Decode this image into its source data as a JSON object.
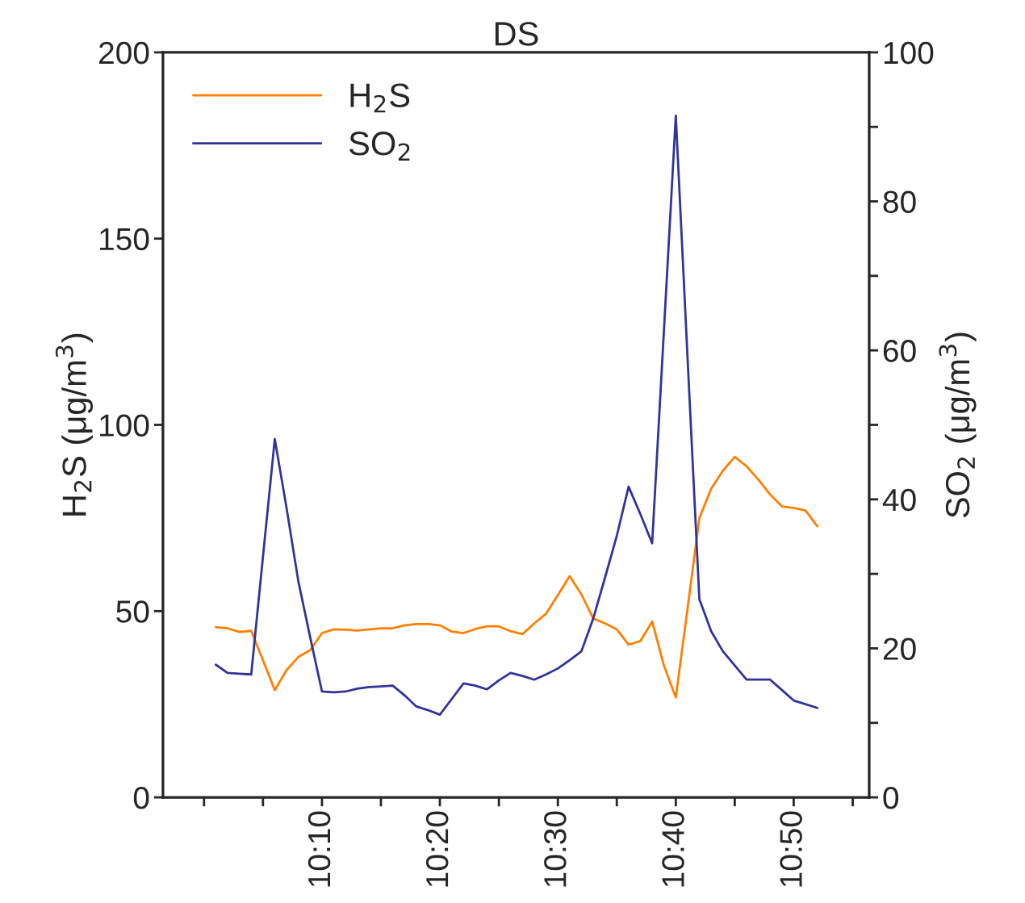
{
  "chart_data": {
    "type": "line",
    "title": "DS",
    "ylabel": "H$_{2}$S (μg/m$^{3}$)",
    "y2label": "SO$_{2}$ (μg/m$^{3}$)",
    "x": [
      10.0167,
      10.0333,
      10.05,
      10.0667,
      10.0833,
      10.1,
      10.1167,
      10.1333,
      10.15,
      10.1667,
      10.1833,
      10.2,
      10.2167,
      10.2333,
      10.25,
      10.2667,
      10.2833,
      10.3,
      10.3167,
      10.3333,
      10.35,
      10.3667,
      10.3833,
      10.4,
      10.4167,
      10.4333,
      10.45,
      10.4667,
      10.4833,
      10.5,
      10.5167,
      10.5333,
      10.55,
      10.5667,
      10.5833,
      10.6,
      10.6167,
      10.6333,
      10.65,
      10.6667,
      10.6833,
      10.7,
      10.7167,
      10.7333,
      10.75,
      10.7667,
      10.7833,
      10.8,
      10.8167,
      10.8333,
      10.85,
      10.8667
    ],
    "series": [
      {
        "name": "H$_{2}$S",
        "color": "#ff8000",
        "values": [
          45.7,
          45.4,
          44.4,
          44.7,
          36.8,
          28.8,
          34.2,
          37.7,
          39.5,
          44.1,
          45.1,
          45.0,
          44.8,
          45.1,
          45.4,
          45.4,
          46.2,
          46.5,
          46.5,
          46.2,
          44.5,
          44.1,
          45.2,
          45.9,
          45.9,
          44.6,
          43.8,
          46.7,
          49.3,
          54.3,
          59.4,
          54.5,
          48.0,
          46.7,
          45.1,
          41.0,
          42.0,
          47.2,
          35.3,
          26.8,
          50.7,
          75.0,
          82.9,
          87.7,
          91.4,
          88.9,
          85.3,
          81.3,
          78.1,
          77.7,
          77.0,
          72.8
        ]
      },
      {
        "name": "SO$_{2}$",
        "color": "#333399",
        "axis": "y2",
        "values": [
          17.8,
          16.7,
          16.6,
          16.5,
          32.3,
          48.1,
          38.8,
          29.0,
          21.5,
          14.2,
          14.1,
          14.2,
          14.6,
          14.8,
          14.9,
          15.0,
          13.7,
          12.2,
          11.7,
          11.1,
          13.2,
          15.3,
          15.0,
          14.5,
          15.7,
          16.7,
          16.3,
          15.8,
          16.5,
          17.3,
          18.4,
          19.6,
          24.0,
          29.5,
          35.1,
          41.7,
          38.0,
          34.1,
          62.8,
          91.5,
          59.0,
          26.6,
          22.3,
          19.6,
          17.7,
          15.8,
          15.8,
          15.8,
          14.4,
          13.0,
          12.5,
          12.0
        ]
      }
    ],
    "xlim": [
      9.942,
      10.94
    ],
    "xticks": [
      {
        "value": 10.0,
        "label": null
      },
      {
        "value": 10.0833,
        "label": null
      },
      {
        "value": 10.1667,
        "label": "10:10"
      },
      {
        "value": 10.25,
        "label": null
      },
      {
        "value": 10.3333,
        "label": "10:20"
      },
      {
        "value": 10.4167,
        "label": null
      },
      {
        "value": 10.5,
        "label": "10:30"
      },
      {
        "value": 10.5833,
        "label": null
      },
      {
        "value": 10.6667,
        "label": "10:40"
      },
      {
        "value": 10.75,
        "label": null
      },
      {
        "value": 10.8333,
        "label": "10:50"
      },
      {
        "value": 10.9167,
        "label": null
      }
    ],
    "ylim": [
      0,
      200
    ],
    "yticks": [
      0,
      50,
      100,
      150,
      200
    ],
    "y2lim": [
      0,
      100
    ],
    "y2ticks": [
      0,
      {
        "value": 10,
        "label": null
      },
      20,
      {
        "value": 30,
        "label": null
      },
      40,
      {
        "value": 50,
        "label": null
      },
      60,
      {
        "value": 70,
        "label": null
      },
      80,
      {
        "value": 90,
        "label": null
      },
      100
    ],
    "legend": "top left",
    "grid": false,
    "line_style": "solid",
    "marker": "none"
  }
}
